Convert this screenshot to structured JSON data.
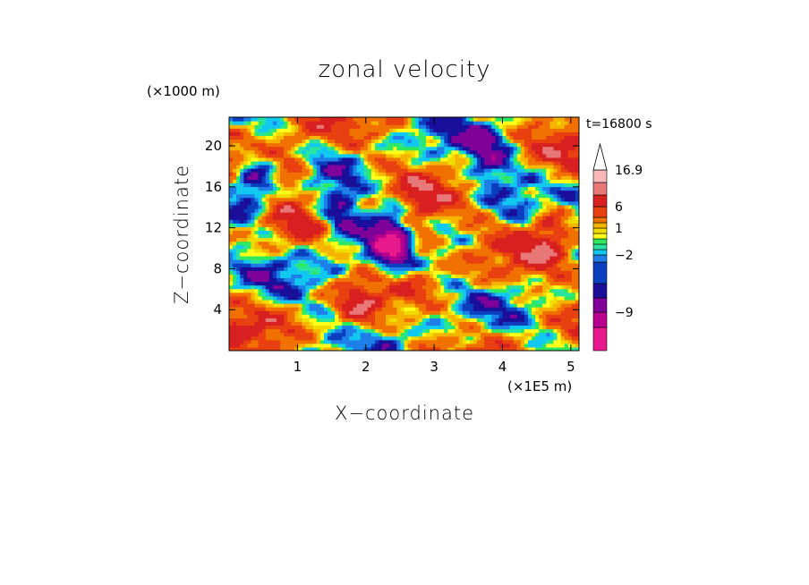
{
  "chart_data": {
    "type": "heatmap",
    "title": "zonal velocity",
    "xlabel": "X−coordinate",
    "ylabel": "Z−coordinate",
    "x_unit": "(×1E5 m)",
    "y_unit": "(×1000 m)",
    "time_label": "t=16800 s",
    "xlim": [
      0,
      5.12
    ],
    "ylim": [
      0,
      22.8
    ],
    "xticks": [
      1,
      2,
      3,
      4,
      5
    ],
    "yticks": [
      4,
      8,
      12,
      16,
      20
    ],
    "colorbar": {
      "levels": [
        -16.9,
        -12,
        -9,
        -6,
        -4,
        -3,
        -2,
        -1,
        -0.5,
        0,
        0.5,
        1,
        2,
        4,
        6,
        9,
        12,
        16.9
      ],
      "labels": [
        "16.9",
        "6",
        "1",
        "−2",
        "−9"
      ],
      "label_values": [
        16.9,
        6,
        1,
        -2,
        -9
      ],
      "colors": [
        "#e8198c",
        "#b8008f",
        "#80009a",
        "#1a0f9a",
        "#0a3fbf",
        "#1f7fe8",
        "#10c8f0",
        "#28e4a0",
        "#2ee860",
        "#ffff1a",
        "#f0dc00",
        "#f5b400",
        "#f07000",
        "#e84010",
        "#d82020",
        "#e87878",
        "#f8b8b8"
      ],
      "extend": "max"
    },
    "jets": [
      {
        "x": 2.38,
        "z": 10.5,
        "u": -12
      },
      {
        "x": 1.65,
        "z": 13.2,
        "u": -8
      },
      {
        "x": 0.35,
        "z": 16.0,
        "u": -7
      },
      {
        "x": 3.8,
        "z": 18.5,
        "u": -6
      },
      {
        "x": 2.75,
        "z": 12.0,
        "u": 7
      },
      {
        "x": 0.9,
        "z": 17.5,
        "u": 5
      },
      {
        "x": 4.7,
        "z": 12.5,
        "u": 7
      },
      {
        "x": 1.9,
        "z": 3.5,
        "u": 5
      }
    ]
  }
}
